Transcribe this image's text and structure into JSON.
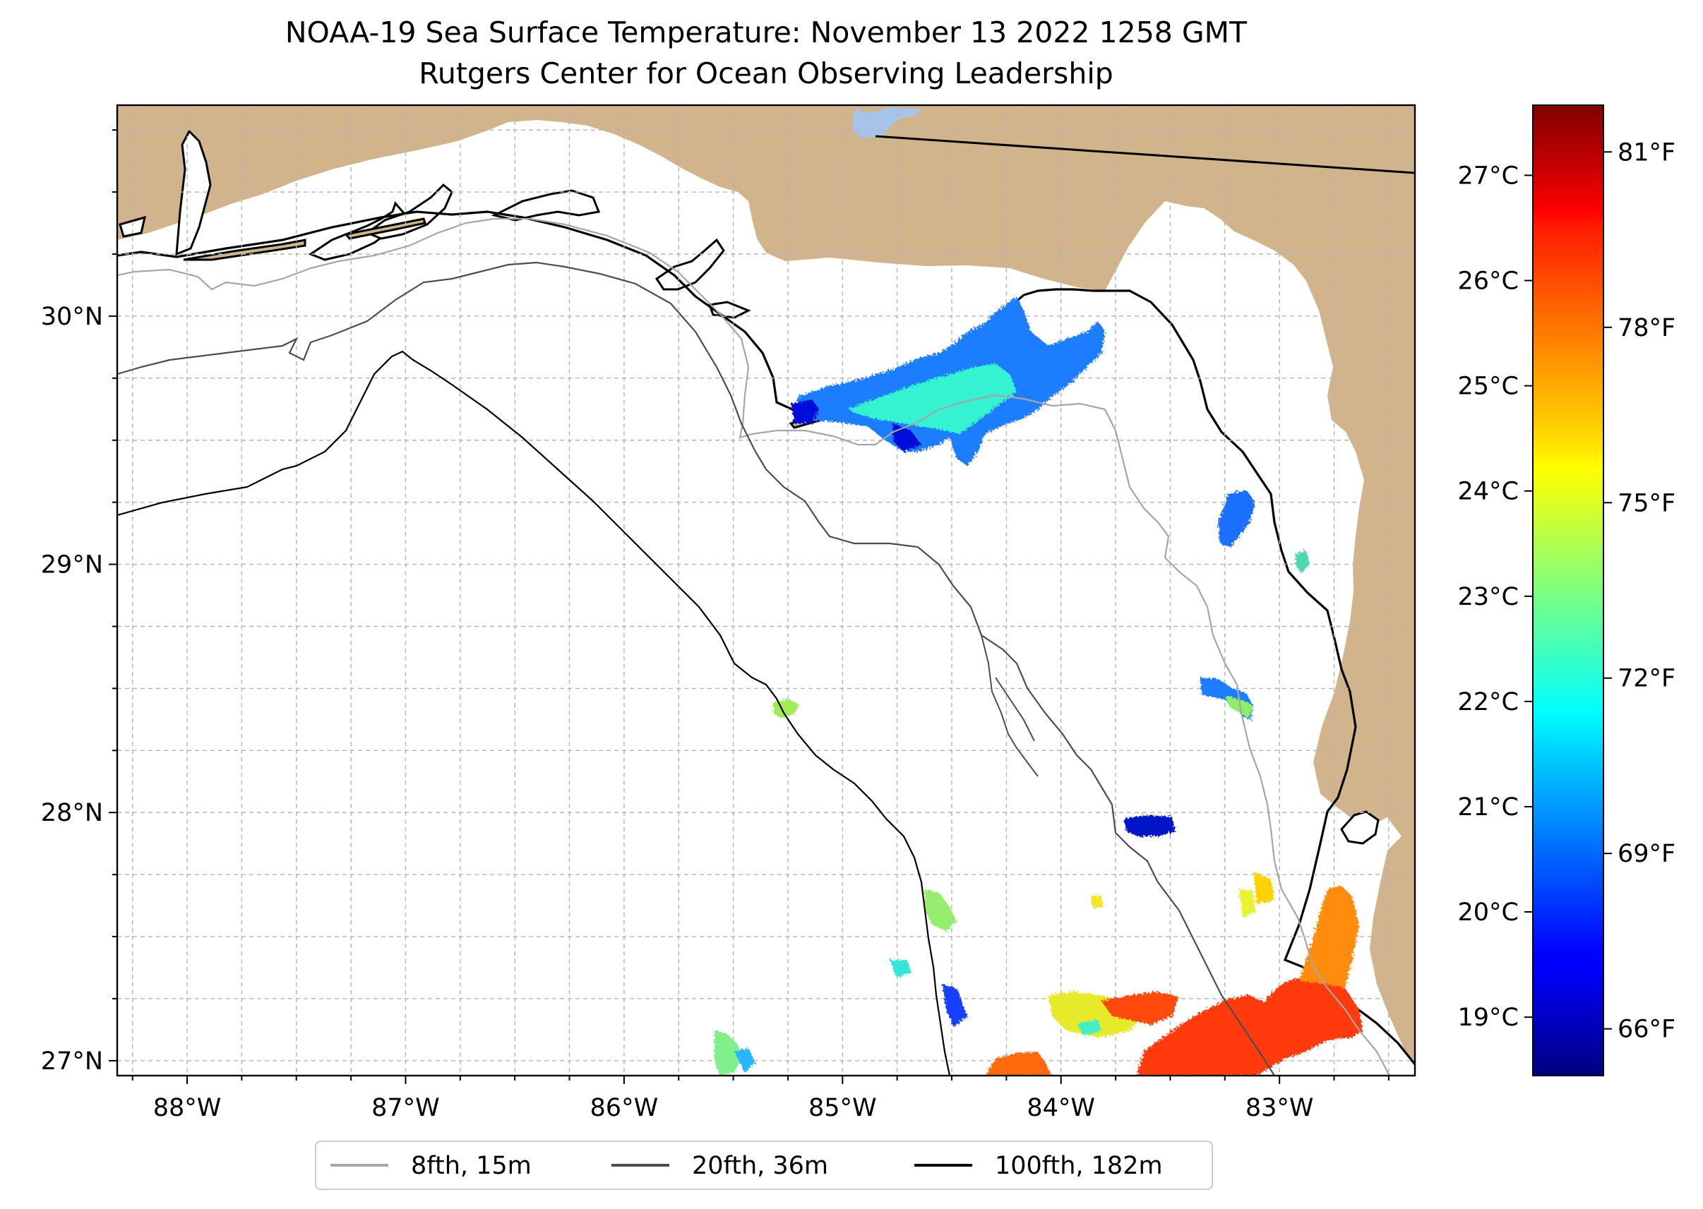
{
  "title": {
    "line1": "NOAA-19 Sea Surface Temperature: November 13 2022 1258 GMT",
    "line2": "Rutgers Center for Ocean Observing Leadership"
  },
  "map": {
    "lon_range": [
      -88.32,
      -82.38
    ],
    "lat_range": [
      26.94,
      30.85
    ],
    "lon_ticks": [
      {
        "value": -88,
        "label": "88°W"
      },
      {
        "value": -87,
        "label": "87°W"
      },
      {
        "value": -86,
        "label": "86°W"
      },
      {
        "value": -85,
        "label": "85°W"
      },
      {
        "value": -84,
        "label": "84°W"
      },
      {
        "value": -83,
        "label": "83°W"
      }
    ],
    "lat_ticks": [
      {
        "value": 27,
        "label": "27°N"
      },
      {
        "value": 28,
        "label": "28°N"
      },
      {
        "value": 29,
        "label": "29°N"
      },
      {
        "value": 30,
        "label": "30°N"
      }
    ],
    "land_color": "#d2b48c",
    "water_color": "#ffffff",
    "gridlines": "dashed gray every 0.25°"
  },
  "legend": {
    "items": [
      {
        "label": "8fth, 15m",
        "color": "#a6a6a6"
      },
      {
        "label": "20fth, 36m",
        "color": "#4d4d4d"
      },
      {
        "label": "100fth, 182m",
        "color": "#000000"
      }
    ]
  },
  "colorbar": {
    "colormap": "jet",
    "range_f": [
      65.2,
      81.8
    ],
    "celsius_ticks": [
      {
        "value": 19,
        "label": "19°C"
      },
      {
        "value": 20,
        "label": "20°C"
      },
      {
        "value": 21,
        "label": "21°C"
      },
      {
        "value": 22,
        "label": "22°C"
      },
      {
        "value": 23,
        "label": "23°C"
      },
      {
        "value": 24,
        "label": "24°C"
      },
      {
        "value": 25,
        "label": "25°C"
      },
      {
        "value": 26,
        "label": "26°C"
      },
      {
        "value": 27,
        "label": "27°C"
      }
    ],
    "fahrenheit_ticks": [
      {
        "value": 66,
        "label": "66°F"
      },
      {
        "value": 69,
        "label": "69°F"
      },
      {
        "value": 72,
        "label": "72°F"
      },
      {
        "value": 75,
        "label": "75°F"
      },
      {
        "value": 78,
        "label": "78°F"
      },
      {
        "value": 81,
        "label": "81°F"
      }
    ]
  },
  "colors": {
    "contour_8fth": "#a6a6a6",
    "contour_20fth": "#4d4d4d",
    "contour_100fth": "#000000",
    "lake": "#a6c4e8"
  }
}
